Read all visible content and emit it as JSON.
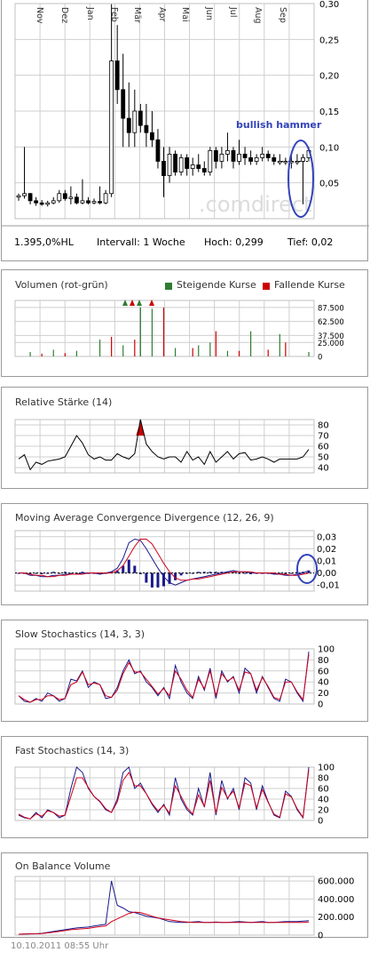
{
  "main_panel": {
    "months": [
      "Nov",
      "Dez",
      "Jan",
      "Feb",
      "Mär",
      "Apr",
      "Mai",
      "Jun",
      "Jul",
      "Aug",
      "Sep"
    ],
    "y_ticks": [
      "0,30",
      "0,25",
      "0,20",
      "0,15",
      "0,10",
      "0,05"
    ],
    "annotation": "bullish hammer",
    "watermark": ".comdirect",
    "footer": {
      "change": "1.395,0%HL",
      "interval": "Intervall: 1 Woche",
      "high": "Hoch:  0,299",
      "low": "Tief:   0,02"
    }
  },
  "volume_panel": {
    "title": "Volumen (rot-grün)",
    "legend_up": "Steigende Kurse",
    "legend_down": "Fallende Kurse",
    "y_ticks": [
      "87.500",
      "62.500",
      "37.500",
      "25.000",
      "0"
    ]
  },
  "rsi_panel": {
    "title": "Relative Stärke (14)",
    "y_ticks": [
      "80",
      "70",
      "60",
      "50",
      "40"
    ]
  },
  "macd_panel": {
    "title": "Moving Average Convergence Divergence (12, 26, 9)",
    "y_ticks": [
      "0,03",
      "0,02",
      "0,01",
      "0,00",
      "-0,01"
    ]
  },
  "slow_stoch_panel": {
    "title": "Slow Stochastics (14, 3, 3)",
    "y_ticks": [
      "100",
      "80",
      "60",
      "40",
      "20",
      "0"
    ]
  },
  "fast_stoch_panel": {
    "title": "Fast Stochastics (14, 3)",
    "y_ticks": [
      "100",
      "80",
      "60",
      "40",
      "20",
      "0"
    ]
  },
  "obv_panel": {
    "title": "On Balance Volume",
    "y_ticks": [
      "600.000",
      "400.000",
      "200.000",
      "0"
    ]
  },
  "timestamp": "10.10.2011 08:55 Uhr",
  "colors": {
    "up": "#2e7d32",
    "down": "#cc0000",
    "line1": "#1a1a8c",
    "line2": "#d0021b",
    "highlight": "#3344bb"
  },
  "chart_data": [
    {
      "type": "candlestick",
      "interval": "weekly",
      "ylim": [
        0,
        0.3
      ],
      "x": [
        0,
        1,
        2,
        3,
        4,
        5,
        6,
        7,
        8,
        9,
        10,
        11,
        12,
        13,
        14,
        15,
        16,
        17,
        18,
        19,
        20,
        21,
        22,
        23,
        24,
        25,
        26,
        27,
        28,
        29,
        30,
        31,
        32,
        33,
        34,
        35,
        36,
        37,
        38,
        39,
        40,
        41,
        42,
        43,
        44,
        45,
        46,
        47,
        48,
        49,
        50
      ],
      "ohlc": [
        [
          0.03,
          0.035,
          0.025,
          0.032
        ],
        [
          0.032,
          0.1,
          0.028,
          0.035
        ],
        [
          0.035,
          0.036,
          0.02,
          0.025
        ],
        [
          0.025,
          0.03,
          0.018,
          0.022
        ],
        [
          0.022,
          0.026,
          0.018,
          0.02
        ],
        [
          0.02,
          0.025,
          0.017,
          0.022
        ],
        [
          0.022,
          0.03,
          0.02,
          0.025
        ],
        [
          0.025,
          0.04,
          0.022,
          0.035
        ],
        [
          0.035,
          0.04,
          0.025,
          0.028
        ],
        [
          0.028,
          0.045,
          0.02,
          0.03
        ],
        [
          0.03,
          0.035,
          0.02,
          0.022
        ],
        [
          0.022,
          0.055,
          0.02,
          0.025
        ],
        [
          0.025,
          0.03,
          0.02,
          0.022
        ],
        [
          0.022,
          0.028,
          0.02,
          0.024
        ],
        [
          0.024,
          0.045,
          0.02,
          0.022
        ],
        [
          0.022,
          0.04,
          0.02,
          0.035
        ],
        [
          0.035,
          0.299,
          0.03,
          0.22
        ],
        [
          0.22,
          0.27,
          0.16,
          0.18
        ],
        [
          0.18,
          0.23,
          0.1,
          0.14
        ],
        [
          0.14,
          0.19,
          0.1,
          0.12
        ],
        [
          0.12,
          0.18,
          0.1,
          0.15
        ],
        [
          0.15,
          0.16,
          0.12,
          0.13
        ],
        [
          0.13,
          0.16,
          0.1,
          0.12
        ],
        [
          0.12,
          0.15,
          0.1,
          0.11
        ],
        [
          0.11,
          0.125,
          0.07,
          0.08
        ],
        [
          0.08,
          0.1,
          0.03,
          0.06
        ],
        [
          0.06,
          0.1,
          0.05,
          0.09
        ],
        [
          0.09,
          0.095,
          0.06,
          0.065
        ],
        [
          0.065,
          0.09,
          0.06,
          0.085
        ],
        [
          0.085,
          0.09,
          0.06,
          0.07
        ],
        [
          0.07,
          0.085,
          0.06,
          0.075
        ],
        [
          0.075,
          0.09,
          0.065,
          0.07
        ],
        [
          0.07,
          0.08,
          0.06,
          0.065
        ],
        [
          0.065,
          0.1,
          0.06,
          0.095
        ],
        [
          0.095,
          0.1,
          0.07,
          0.08
        ],
        [
          0.08,
          0.1,
          0.07,
          0.09
        ],
        [
          0.09,
          0.12,
          0.08,
          0.095
        ],
        [
          0.095,
          0.1,
          0.07,
          0.08
        ],
        [
          0.08,
          0.11,
          0.075,
          0.09
        ],
        [
          0.09,
          0.1,
          0.075,
          0.085
        ],
        [
          0.085,
          0.095,
          0.075,
          0.08
        ],
        [
          0.08,
          0.09,
          0.075,
          0.085
        ],
        [
          0.085,
          0.1,
          0.08,
          0.09
        ],
        [
          0.09,
          0.095,
          0.08,
          0.085
        ],
        [
          0.085,
          0.09,
          0.075,
          0.08
        ],
        [
          0.08,
          0.09,
          0.075,
          0.08
        ],
        [
          0.08,
          0.085,
          0.075,
          0.08
        ],
        [
          0.08,
          0.09,
          0.07,
          0.08
        ],
        [
          0.08,
          0.09,
          0.075,
          0.08
        ],
        [
          0.08,
          0.09,
          0.02,
          0.085
        ],
        [
          0.085,
          0.1,
          0.08,
          0.095
        ]
      ],
      "high": 0.299,
      "low": 0.02
    },
    {
      "type": "bar",
      "title": "Volumen (rot-grün)",
      "ylim": [
        0,
        100000
      ],
      "series": [
        {
          "name": "Steigende Kurse",
          "x": [
            2,
            6,
            10,
            14,
            18,
            21,
            23,
            27,
            31,
            33,
            36,
            40,
            45,
            50
          ],
          "values": [
            8000,
            12000,
            10000,
            30000,
            20000,
            87500,
            85000,
            15000,
            20000,
            25000,
            10000,
            45000,
            40000,
            8000
          ]
        },
        {
          "name": "Fallende Kurse",
          "x": [
            4,
            8,
            16,
            20,
            25,
            30,
            34,
            38,
            43,
            46
          ],
          "values": [
            5000,
            6000,
            35000,
            30000,
            87500,
            15000,
            45000,
            10000,
            12000,
            25000
          ]
        }
      ]
    },
    {
      "type": "line",
      "title": "Relative Stärke (14)",
      "ylim": [
        35,
        90
      ],
      "series": [
        {
          "name": "",
          "values": [
            48,
            52,
            38,
            45,
            43,
            46,
            47,
            48,
            50,
            60,
            70,
            63,
            52,
            48,
            50,
            47,
            47,
            53,
            50,
            48,
            53,
            85,
            62,
            55,
            50,
            48,
            50,
            50,
            45,
            55,
            47,
            50,
            43,
            55,
            45,
            50,
            55,
            48,
            53,
            54,
            47,
            48,
            50,
            48,
            45,
            48,
            48,
            48,
            48,
            50,
            57
          ]
        }
      ]
    },
    {
      "type": "line",
      "title": "Moving Average Convergence Divergence (12, 26, 9)",
      "ylim": [
        -0.015,
        0.035
      ],
      "series": [
        {
          "name": "",
          "values": [
            0,
            0,
            -0.002,
            -0.002,
            -0.003,
            -0.003,
            -0.002,
            -0.002,
            -0.001,
            -0.001,
            -0.001,
            0,
            0,
            0,
            -0.001,
            0,
            0.001,
            0.004,
            0.012,
            0.025,
            0.028,
            0.027,
            0.02,
            0.012,
            0.004,
            -0.003,
            -0.008,
            -0.01,
            -0.008,
            -0.006,
            -0.005,
            -0.004,
            -0.003,
            -0.002,
            -0.001,
            0,
            0.001,
            0.002,
            0.001,
            0.001,
            0,
            0,
            0,
            0,
            -0.001,
            -0.001,
            -0.002,
            -0.002,
            -0.001,
            0,
            0.002
          ]
        },
        {
          "name": "",
          "values": [
            0,
            0,
            -0.001,
            -0.002,
            -0.002,
            -0.003,
            -0.003,
            -0.002,
            -0.002,
            -0.001,
            -0.001,
            -0.001,
            0,
            0,
            0,
            0,
            0,
            0.002,
            0.006,
            0.014,
            0.022,
            0.028,
            0.028,
            0.024,
            0.016,
            0.008,
            0.001,
            -0.004,
            -0.006,
            -0.006,
            -0.005,
            -0.005,
            -0.004,
            -0.003,
            -0.002,
            -0.001,
            0,
            0.001,
            0.001,
            0.001,
            0.001,
            0,
            0,
            0,
            0,
            -0.001,
            -0.001,
            -0.002,
            -0.002,
            -0.001,
            0
          ]
        }
      ]
    },
    {
      "type": "line",
      "title": "Slow Stochastics (14, 3, 3)",
      "ylim": [
        0,
        100
      ],
      "series": [
        {
          "name": "",
          "values": [
            15,
            5,
            3,
            10,
            5,
            20,
            15,
            5,
            10,
            45,
            42,
            60,
            30,
            40,
            35,
            10,
            12,
            30,
            60,
            80,
            55,
            60,
            40,
            30,
            15,
            30,
            10,
            70,
            40,
            20,
            10,
            50,
            25,
            65,
            10,
            60,
            40,
            50,
            20,
            65,
            55,
            20,
            50,
            30,
            10,
            5,
            45,
            40,
            20,
            5,
            95
          ]
        },
        {
          "name": "",
          "values": [
            15,
            8,
            3,
            8,
            8,
            15,
            15,
            8,
            10,
            35,
            40,
            58,
            35,
            38,
            35,
            15,
            12,
            25,
            55,
            75,
            58,
            58,
            45,
            32,
            18,
            28,
            15,
            60,
            45,
            25,
            12,
            45,
            28,
            60,
            15,
            55,
            42,
            48,
            25,
            58,
            55,
            25,
            48,
            32,
            12,
            8,
            40,
            40,
            22,
            8,
            90
          ]
        }
      ]
    },
    {
      "type": "line",
      "title": "Fast Stochastics (14, 3)",
      "ylim": [
        0,
        100
      ],
      "series": [
        {
          "name": "",
          "values": [
            10,
            5,
            3,
            15,
            5,
            20,
            15,
            5,
            10,
            60,
            100,
            90,
            60,
            45,
            35,
            20,
            15,
            40,
            90,
            100,
            60,
            70,
            50,
            30,
            15,
            30,
            10,
            80,
            40,
            20,
            10,
            60,
            25,
            90,
            10,
            75,
            40,
            60,
            20,
            80,
            70,
            20,
            65,
            35,
            10,
            5,
            55,
            45,
            20,
            5,
            100
          ]
        },
        {
          "name": "",
          "values": [
            12,
            6,
            3,
            12,
            8,
            18,
            15,
            8,
            10,
            45,
            80,
            80,
            62,
            45,
            36,
            22,
            15,
            35,
            75,
            90,
            65,
            65,
            50,
            32,
            18,
            28,
            14,
            65,
            45,
            24,
            12,
            48,
            26,
            75,
            14,
            62,
            42,
            55,
            24,
            70,
            65,
            24,
            58,
            34,
            12,
            6,
            50,
            44,
            22,
            6,
            95
          ]
        }
      ]
    },
    {
      "type": "line",
      "title": "On Balance Volume",
      "ylim": [
        0,
        650000
      ],
      "series": [
        {
          "name": "",
          "values": [
            10000,
            12000,
            15000,
            15000,
            20000,
            30000,
            40000,
            50000,
            60000,
            70000,
            80000,
            85000,
            90000,
            100000,
            110000,
            120000,
            600000,
            330000,
            300000,
            260000,
            250000,
            230000,
            210000,
            200000,
            190000,
            170000,
            150000,
            145000,
            140000,
            140000,
            145000,
            150000,
            140000,
            140000,
            145000,
            140000,
            140000,
            145000,
            150000,
            145000,
            140000,
            145000,
            150000,
            140000,
            140000,
            145000,
            150000,
            150000,
            150000,
            155000,
            160000
          ]
        },
        {
          "name": "",
          "values": [
            10000,
            12000,
            14000,
            15000,
            18000,
            25000,
            32000,
            40000,
            50000,
            60000,
            65000,
            70000,
            75000,
            85000,
            95000,
            100000,
            150000,
            180000,
            210000,
            240000,
            255000,
            250000,
            230000,
            210000,
            190000,
            180000,
            170000,
            160000,
            150000,
            145000,
            140000,
            140000,
            140000,
            140000,
            140000,
            140000,
            140000,
            140000,
            140000,
            140000,
            140000,
            140000,
            140000,
            140000,
            140000,
            140000,
            140000,
            140000,
            140000,
            140000,
            145000
          ]
        }
      ]
    }
  ]
}
